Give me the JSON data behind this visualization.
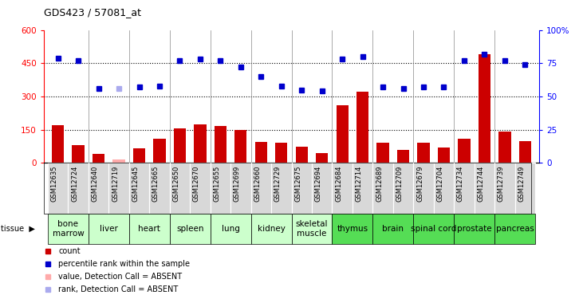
{
  "title": "GDS423 / 57081_at",
  "samples": [
    "GSM12635",
    "GSM12724",
    "GSM12640",
    "GSM12719",
    "GSM12645",
    "GSM12665",
    "GSM12650",
    "GSM12670",
    "GSM12655",
    "GSM12699",
    "GSM12660",
    "GSM12729",
    "GSM12675",
    "GSM12694",
    "GSM12684",
    "GSM12714",
    "GSM12689",
    "GSM12709",
    "GSM12679",
    "GSM12704",
    "GSM12734",
    "GSM12744",
    "GSM12739",
    "GSM12749"
  ],
  "bar_values": [
    170,
    80,
    40,
    15,
    65,
    110,
    155,
    175,
    165,
    150,
    95,
    90,
    75,
    45,
    260,
    320,
    90,
    60,
    90,
    70,
    110,
    490,
    140,
    100
  ],
  "bar_absent": [
    false,
    false,
    false,
    true,
    false,
    false,
    false,
    false,
    false,
    false,
    false,
    false,
    false,
    false,
    false,
    false,
    false,
    false,
    false,
    false,
    false,
    false,
    false,
    false
  ],
  "rank_values": [
    79,
    77,
    56,
    56,
    57,
    58,
    77,
    78,
    77,
    72,
    65,
    58,
    55,
    54,
    78,
    80,
    57,
    56,
    57,
    57,
    77,
    82,
    77,
    74
  ],
  "rank_absent": [
    false,
    false,
    false,
    true,
    false,
    false,
    false,
    false,
    false,
    false,
    false,
    false,
    false,
    false,
    false,
    false,
    false,
    false,
    false,
    false,
    false,
    false,
    false,
    false
  ],
  "tissues": [
    {
      "name": "bone\nmarrow",
      "start": 0,
      "end": 2,
      "color": "#ccffcc"
    },
    {
      "name": "liver",
      "start": 2,
      "end": 4,
      "color": "#ccffcc"
    },
    {
      "name": "heart",
      "start": 4,
      "end": 6,
      "color": "#ccffcc"
    },
    {
      "name": "spleen",
      "start": 6,
      "end": 8,
      "color": "#ccffcc"
    },
    {
      "name": "lung",
      "start": 8,
      "end": 10,
      "color": "#ccffcc"
    },
    {
      "name": "kidney",
      "start": 10,
      "end": 12,
      "color": "#ccffcc"
    },
    {
      "name": "skeletal\nmuscle",
      "start": 12,
      "end": 14,
      "color": "#ccffcc"
    },
    {
      "name": "thymus",
      "start": 14,
      "end": 16,
      "color": "#55dd55"
    },
    {
      "name": "brain",
      "start": 16,
      "end": 18,
      "color": "#55dd55"
    },
    {
      "name": "spinal cord",
      "start": 18,
      "end": 20,
      "color": "#55dd55"
    },
    {
      "name": "prostate",
      "start": 20,
      "end": 22,
      "color": "#55dd55"
    },
    {
      "name": "pancreas",
      "start": 22,
      "end": 24,
      "color": "#55dd55"
    }
  ],
  "bar_color": "#cc0000",
  "bar_absent_color": "#ffaaaa",
  "rank_color": "#0000cc",
  "rank_absent_color": "#aaaaee",
  "ylim_left": [
    0,
    600
  ],
  "ylim_right": [
    0,
    100
  ],
  "yticks_left": [
    0,
    150,
    300,
    450,
    600
  ],
  "yticks_right": [
    0,
    25,
    50,
    75,
    100
  ],
  "grid_lines": [
    150,
    300,
    450
  ],
  "figsize": [
    7.31,
    3.75
  ],
  "dpi": 100,
  "xlabel_bg": "#d8d8d8",
  "tissue_label_fontsize": 7.5,
  "sample_fontsize": 6
}
